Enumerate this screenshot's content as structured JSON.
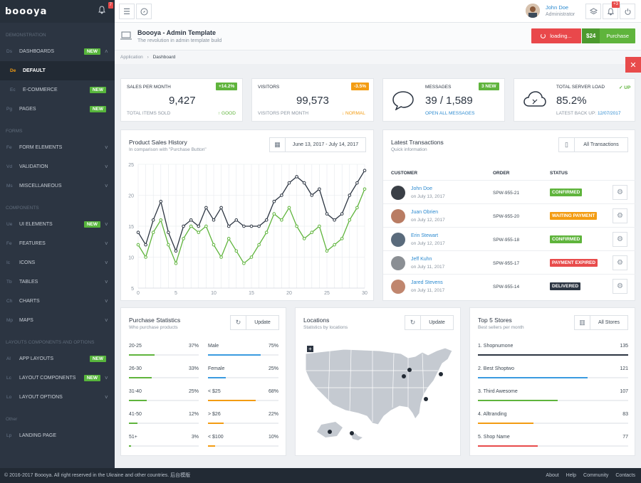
{
  "app": {
    "logo": "boooya",
    "notif_count": "7"
  },
  "sidebar": {
    "sections": [
      "Demonstration",
      "Forms",
      "Components",
      "Layouts components and options",
      "Other"
    ],
    "demo": [
      {
        "abbr": "Ds",
        "label": "Dashboards",
        "badge": "NEW"
      },
      {
        "abbr": "De",
        "label": "Default",
        "badge": ""
      },
      {
        "abbr": "Ec",
        "label": "E-commerce",
        "badge": "NEW"
      },
      {
        "abbr": "Pg",
        "label": "Pages",
        "badge": "NEW"
      }
    ],
    "forms": [
      {
        "abbr": "Fe",
        "label": "Form elements",
        "badge": ""
      },
      {
        "abbr": "Vd",
        "label": "Validation",
        "badge": ""
      },
      {
        "abbr": "Ms",
        "label": "Miscellaneous",
        "badge": ""
      }
    ],
    "components": [
      {
        "abbr": "Ue",
        "label": "UI Elements",
        "badge": "NEW"
      },
      {
        "abbr": "Fe",
        "label": "Features",
        "badge": ""
      },
      {
        "abbr": "Ic",
        "label": "Icons",
        "badge": ""
      },
      {
        "abbr": "Tb",
        "label": "Tables",
        "badge": ""
      },
      {
        "abbr": "Ch",
        "label": "Charts",
        "badge": ""
      },
      {
        "abbr": "Mp",
        "label": "Maps",
        "badge": ""
      }
    ],
    "layouts": [
      {
        "abbr": "Al",
        "label": "App layouts",
        "badge": "NEW"
      },
      {
        "abbr": "Lc",
        "label": "Layout components",
        "badge": "NEW"
      },
      {
        "abbr": "Lo",
        "label": "Layout options",
        "badge": ""
      }
    ],
    "other": [
      {
        "abbr": "Lp",
        "label": "Landing page",
        "badge": ""
      }
    ]
  },
  "topbar": {
    "user_name": "John Doe",
    "user_role": "Administrator",
    "notif_count": "+3"
  },
  "header": {
    "title": "Boooya - Admin Template",
    "subtitle": "The revolution in admin template build",
    "loading_label": "loading...",
    "price": "$24",
    "purchase_label": "Purchase"
  },
  "breadcrumb": {
    "parent": "Application",
    "sep": "›",
    "current": "Dashboard"
  },
  "stats": [
    {
      "label": "Sales per month",
      "value": "9,427",
      "badge": "+14.2%",
      "badge_color": "#5fb43c",
      "foot_left": "Total items sold",
      "foot_right": "↑ GOOD",
      "foot_right_color": "#5fb43c"
    },
    {
      "label": "Visitors",
      "value": "99,573",
      "badge": "-3.5%",
      "badge_color": "#f39c12",
      "foot_left": "Visitors per month",
      "foot_right": "↓ NORMAL",
      "foot_right_color": "#f39c12"
    },
    {
      "label": "Messages",
      "value": "39 / 1,589",
      "badge": "3 NEW",
      "badge_color": "#5fb43c",
      "foot_left": "Open all messages",
      "foot_right": "",
      "foot_right_color": "#2e8bd0"
    },
    {
      "label": "Total server load",
      "value": "85.2%",
      "badge": "✓ UP",
      "badge_color": "#5fb43c",
      "foot_left": "Latest back up:",
      "foot_date": "12/07/2017",
      "foot_right": "",
      "foot_right_color": "#2e8bd0"
    }
  ],
  "sales_history": {
    "title": "Product Sales History",
    "subtitle": "In comparison with \"Purchase Button\"",
    "date_range": "June 13, 2017 - July 14, 2017"
  },
  "chart_data": {
    "type": "line",
    "x": [
      0,
      1,
      2,
      3,
      4,
      5,
      6,
      7,
      8,
      9,
      10,
      11,
      12,
      13,
      14,
      15,
      16,
      17,
      18,
      19,
      20,
      21,
      22,
      23,
      24,
      25,
      26,
      27,
      28,
      29,
      30
    ],
    "series": [
      {
        "color": "#2c3542",
        "values": [
          14,
          12,
          16,
          19,
          14,
          11,
          15,
          16,
          15,
          18,
          16,
          18,
          15,
          16,
          15,
          15,
          15,
          16,
          19,
          20,
          22,
          23,
          22,
          20,
          21,
          17,
          16,
          17,
          20,
          22,
          24
        ]
      },
      {
        "color": "#5fb43c",
        "values": [
          12,
          10,
          14,
          16,
          12,
          9,
          13,
          15,
          14,
          15,
          12,
          10,
          13,
          11,
          9,
          10,
          12,
          14,
          17,
          16,
          18,
          15,
          13,
          14,
          15,
          11,
          12,
          13,
          16,
          18,
          21
        ]
      }
    ],
    "xticks": [
      "0",
      "5",
      "10",
      "15",
      "20",
      "25",
      "30"
    ],
    "yticks": [
      "5",
      "10",
      "15",
      "20",
      "25"
    ],
    "xlim": [
      0,
      30
    ],
    "ylim": [
      5,
      25
    ],
    "grid": true
  },
  "transactions": {
    "title": "Latest Transactions",
    "subtitle": "Quick information",
    "button": "All Transactions",
    "headers": [
      "Customer",
      "Order",
      "Status"
    ],
    "rows": [
      {
        "name": "John Doe",
        "date": "on July 13, 2017",
        "order": "SPW-955-21",
        "status": "Confirmed",
        "status_color": "#5fb43c",
        "avatar_color": "#3a3f46"
      },
      {
        "name": "Juan Obrien",
        "date": "on July 12, 2017",
        "order": "SPW-955-20",
        "status": "Waiting payment",
        "status_color": "#f39c12",
        "avatar_color": "#b97c63"
      },
      {
        "name": "Erin Stewart",
        "date": "on July 12, 2017",
        "order": "SPW-955-18",
        "status": "Confirmed",
        "status_color": "#5fb43c",
        "avatar_color": "#5a6b7c"
      },
      {
        "name": "Jeff Kuhn",
        "date": "on July 11, 2017",
        "order": "SPW-955-17",
        "status": "Payment expired",
        "status_color": "#e84b4b",
        "avatar_color": "#8b8f94"
      },
      {
        "name": "Jared Stevens",
        "date": "on July 11, 2017",
        "order": "SPW-955-14",
        "status": "Delivered",
        "status_color": "#2c3542",
        "avatar_color": "#c0866e"
      }
    ]
  },
  "purchase_stats": {
    "title": "Purchase Statistics",
    "subtitle": "Who purchase products",
    "button": "Update",
    "left": [
      {
        "label": "20-25",
        "value": "37%",
        "pct": 37,
        "color": "#5fb43c"
      },
      {
        "label": "26-30",
        "value": "33%",
        "pct": 33,
        "color": "#5fb43c"
      },
      {
        "label": "31-40",
        "value": "25%",
        "pct": 25,
        "color": "#5fb43c"
      },
      {
        "label": "41-50",
        "value": "12%",
        "pct": 12,
        "color": "#5fb43c"
      },
      {
        "label": "51+",
        "value": "3%",
        "pct": 3,
        "color": "#5fb43c"
      }
    ],
    "right": [
      {
        "label": "Male",
        "value": "75%",
        "pct": 75,
        "color": "#3a9be0"
      },
      {
        "label": "Female",
        "value": "25%",
        "pct": 25,
        "color": "#3a9be0"
      },
      {
        "label": "< $25",
        "value": "68%",
        "pct": 68,
        "color": "#f39c12"
      },
      {
        "label": "> $26",
        "value": "22%",
        "pct": 22,
        "color": "#f39c12"
      },
      {
        "label": "< $100",
        "value": "10%",
        "pct": 10,
        "color": "#f39c12"
      }
    ]
  },
  "locations": {
    "title": "Locations",
    "subtitle": "Statistics by locations",
    "button": "Update",
    "zoom_in": "+",
    "zoom_out": "−"
  },
  "stores": {
    "title": "Top 5 Stores",
    "subtitle": "Best sellers per month",
    "button": "All Stores",
    "rows": [
      {
        "label": "1. Shopnumone",
        "value": "135",
        "pct": 100,
        "color": "#2c3542"
      },
      {
        "label": "2. Best Shoptwo",
        "value": "121",
        "pct": 73,
        "color": "#3a9be0"
      },
      {
        "label": "3. Third Awesome",
        "value": "107",
        "pct": 53,
        "color": "#5fb43c"
      },
      {
        "label": "4. Alltranding",
        "value": "83",
        "pct": 37,
        "color": "#f39c12"
      },
      {
        "label": "5. Shop Name",
        "value": "77",
        "pct": 40,
        "color": "#e84b4b"
      }
    ]
  },
  "footer": {
    "copyright": "© 2016-2017 Boooya. All right reserved in the Ukraine and other countries. 后台模版",
    "links": [
      "About",
      "Help",
      "Community",
      "Contacts"
    ]
  }
}
